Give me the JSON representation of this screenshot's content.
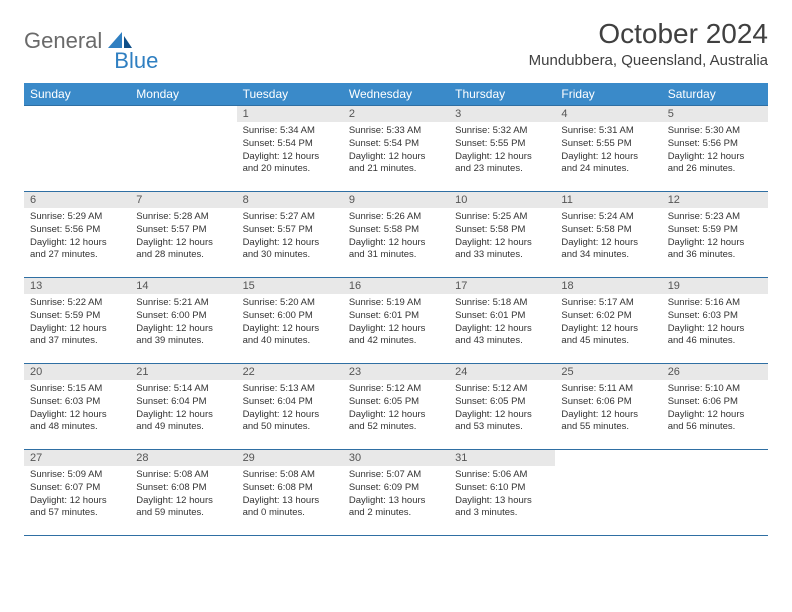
{
  "logo": {
    "text1": "General",
    "text2": "Blue"
  },
  "title": "October 2024",
  "location": "Mundubbera, Queensland, Australia",
  "colors": {
    "header_bg": "#3a8ac9",
    "header_text": "#ffffff",
    "daynum_bg": "#e8e8e8",
    "border": "#2f6fa3",
    "logo_gray": "#6a6a6a",
    "logo_blue": "#2f7fc1"
  },
  "weekdays": [
    "Sunday",
    "Monday",
    "Tuesday",
    "Wednesday",
    "Thursday",
    "Friday",
    "Saturday"
  ],
  "weeks": [
    [
      {
        "n": "",
        "t": ""
      },
      {
        "n": "",
        "t": ""
      },
      {
        "n": "1",
        "t": "Sunrise: 5:34 AM\nSunset: 5:54 PM\nDaylight: 12 hours and 20 minutes."
      },
      {
        "n": "2",
        "t": "Sunrise: 5:33 AM\nSunset: 5:54 PM\nDaylight: 12 hours and 21 minutes."
      },
      {
        "n": "3",
        "t": "Sunrise: 5:32 AM\nSunset: 5:55 PM\nDaylight: 12 hours and 23 minutes."
      },
      {
        "n": "4",
        "t": "Sunrise: 5:31 AM\nSunset: 5:55 PM\nDaylight: 12 hours and 24 minutes."
      },
      {
        "n": "5",
        "t": "Sunrise: 5:30 AM\nSunset: 5:56 PM\nDaylight: 12 hours and 26 minutes."
      }
    ],
    [
      {
        "n": "6",
        "t": "Sunrise: 5:29 AM\nSunset: 5:56 PM\nDaylight: 12 hours and 27 minutes."
      },
      {
        "n": "7",
        "t": "Sunrise: 5:28 AM\nSunset: 5:57 PM\nDaylight: 12 hours and 28 minutes."
      },
      {
        "n": "8",
        "t": "Sunrise: 5:27 AM\nSunset: 5:57 PM\nDaylight: 12 hours and 30 minutes."
      },
      {
        "n": "9",
        "t": "Sunrise: 5:26 AM\nSunset: 5:58 PM\nDaylight: 12 hours and 31 minutes."
      },
      {
        "n": "10",
        "t": "Sunrise: 5:25 AM\nSunset: 5:58 PM\nDaylight: 12 hours and 33 minutes."
      },
      {
        "n": "11",
        "t": "Sunrise: 5:24 AM\nSunset: 5:58 PM\nDaylight: 12 hours and 34 minutes."
      },
      {
        "n": "12",
        "t": "Sunrise: 5:23 AM\nSunset: 5:59 PM\nDaylight: 12 hours and 36 minutes."
      }
    ],
    [
      {
        "n": "13",
        "t": "Sunrise: 5:22 AM\nSunset: 5:59 PM\nDaylight: 12 hours and 37 minutes."
      },
      {
        "n": "14",
        "t": "Sunrise: 5:21 AM\nSunset: 6:00 PM\nDaylight: 12 hours and 39 minutes."
      },
      {
        "n": "15",
        "t": "Sunrise: 5:20 AM\nSunset: 6:00 PM\nDaylight: 12 hours and 40 minutes."
      },
      {
        "n": "16",
        "t": "Sunrise: 5:19 AM\nSunset: 6:01 PM\nDaylight: 12 hours and 42 minutes."
      },
      {
        "n": "17",
        "t": "Sunrise: 5:18 AM\nSunset: 6:01 PM\nDaylight: 12 hours and 43 minutes."
      },
      {
        "n": "18",
        "t": "Sunrise: 5:17 AM\nSunset: 6:02 PM\nDaylight: 12 hours and 45 minutes."
      },
      {
        "n": "19",
        "t": "Sunrise: 5:16 AM\nSunset: 6:03 PM\nDaylight: 12 hours and 46 minutes."
      }
    ],
    [
      {
        "n": "20",
        "t": "Sunrise: 5:15 AM\nSunset: 6:03 PM\nDaylight: 12 hours and 48 minutes."
      },
      {
        "n": "21",
        "t": "Sunrise: 5:14 AM\nSunset: 6:04 PM\nDaylight: 12 hours and 49 minutes."
      },
      {
        "n": "22",
        "t": "Sunrise: 5:13 AM\nSunset: 6:04 PM\nDaylight: 12 hours and 50 minutes."
      },
      {
        "n": "23",
        "t": "Sunrise: 5:12 AM\nSunset: 6:05 PM\nDaylight: 12 hours and 52 minutes."
      },
      {
        "n": "24",
        "t": "Sunrise: 5:12 AM\nSunset: 6:05 PM\nDaylight: 12 hours and 53 minutes."
      },
      {
        "n": "25",
        "t": "Sunrise: 5:11 AM\nSunset: 6:06 PM\nDaylight: 12 hours and 55 minutes."
      },
      {
        "n": "26",
        "t": "Sunrise: 5:10 AM\nSunset: 6:06 PM\nDaylight: 12 hours and 56 minutes."
      }
    ],
    [
      {
        "n": "27",
        "t": "Sunrise: 5:09 AM\nSunset: 6:07 PM\nDaylight: 12 hours and 57 minutes."
      },
      {
        "n": "28",
        "t": "Sunrise: 5:08 AM\nSunset: 6:08 PM\nDaylight: 12 hours and 59 minutes."
      },
      {
        "n": "29",
        "t": "Sunrise: 5:08 AM\nSunset: 6:08 PM\nDaylight: 13 hours and 0 minutes."
      },
      {
        "n": "30",
        "t": "Sunrise: 5:07 AM\nSunset: 6:09 PM\nDaylight: 13 hours and 2 minutes."
      },
      {
        "n": "31",
        "t": "Sunrise: 5:06 AM\nSunset: 6:10 PM\nDaylight: 13 hours and 3 minutes."
      },
      {
        "n": "",
        "t": ""
      },
      {
        "n": "",
        "t": ""
      }
    ]
  ]
}
